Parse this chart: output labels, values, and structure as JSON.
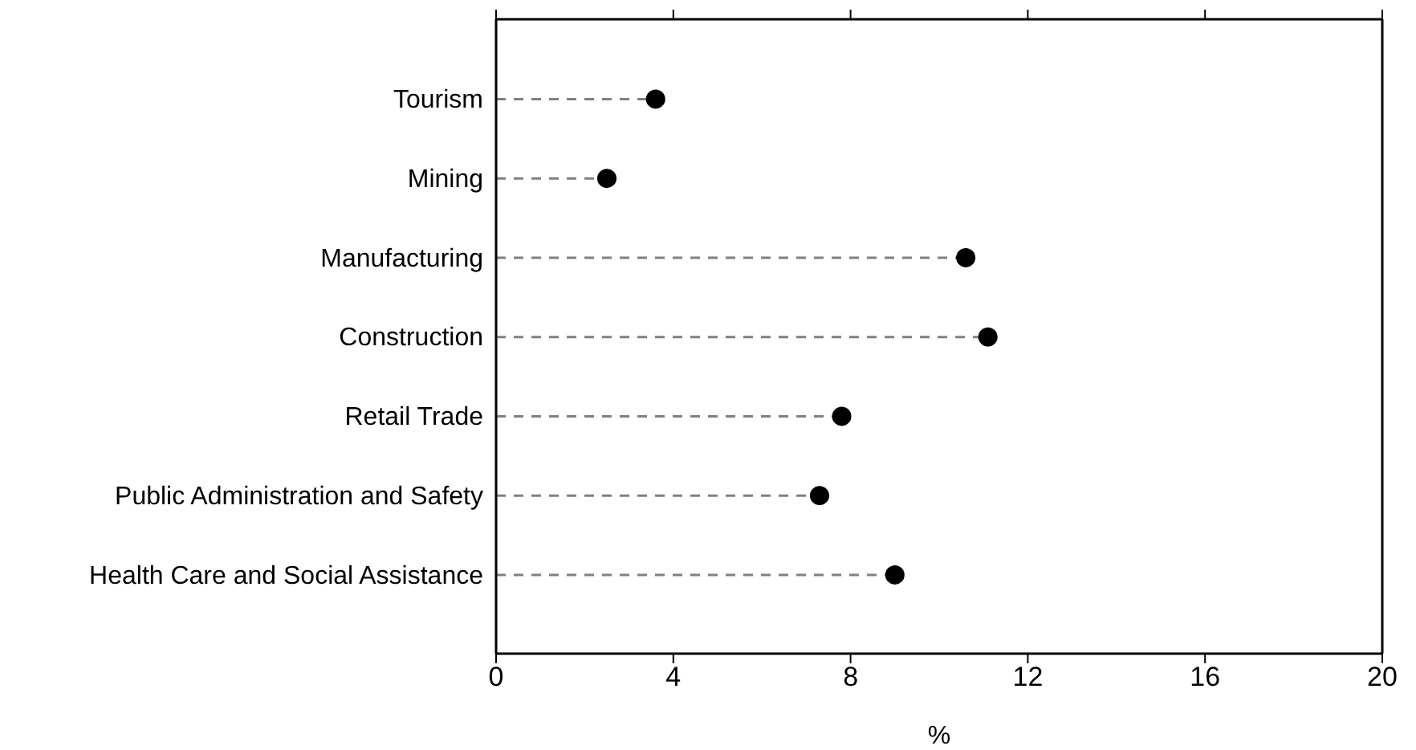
{
  "chart_data": {
    "type": "lollipop",
    "orientation": "horizontal",
    "categories": [
      "Tourism",
      "Mining",
      "Manufacturing",
      "Construction",
      "Retail Trade",
      "Public Administration and Safety",
      "Health Care and Social Assistance"
    ],
    "values": [
      3.6,
      2.5,
      10.6,
      11.1,
      7.8,
      7.3,
      9.0
    ],
    "color": "#000000",
    "xlabel": "%",
    "xlim": [
      0,
      20
    ],
    "xticks": [
      0,
      4,
      8,
      12,
      16,
      20
    ],
    "marker": "circle",
    "line_style": "dashed"
  }
}
